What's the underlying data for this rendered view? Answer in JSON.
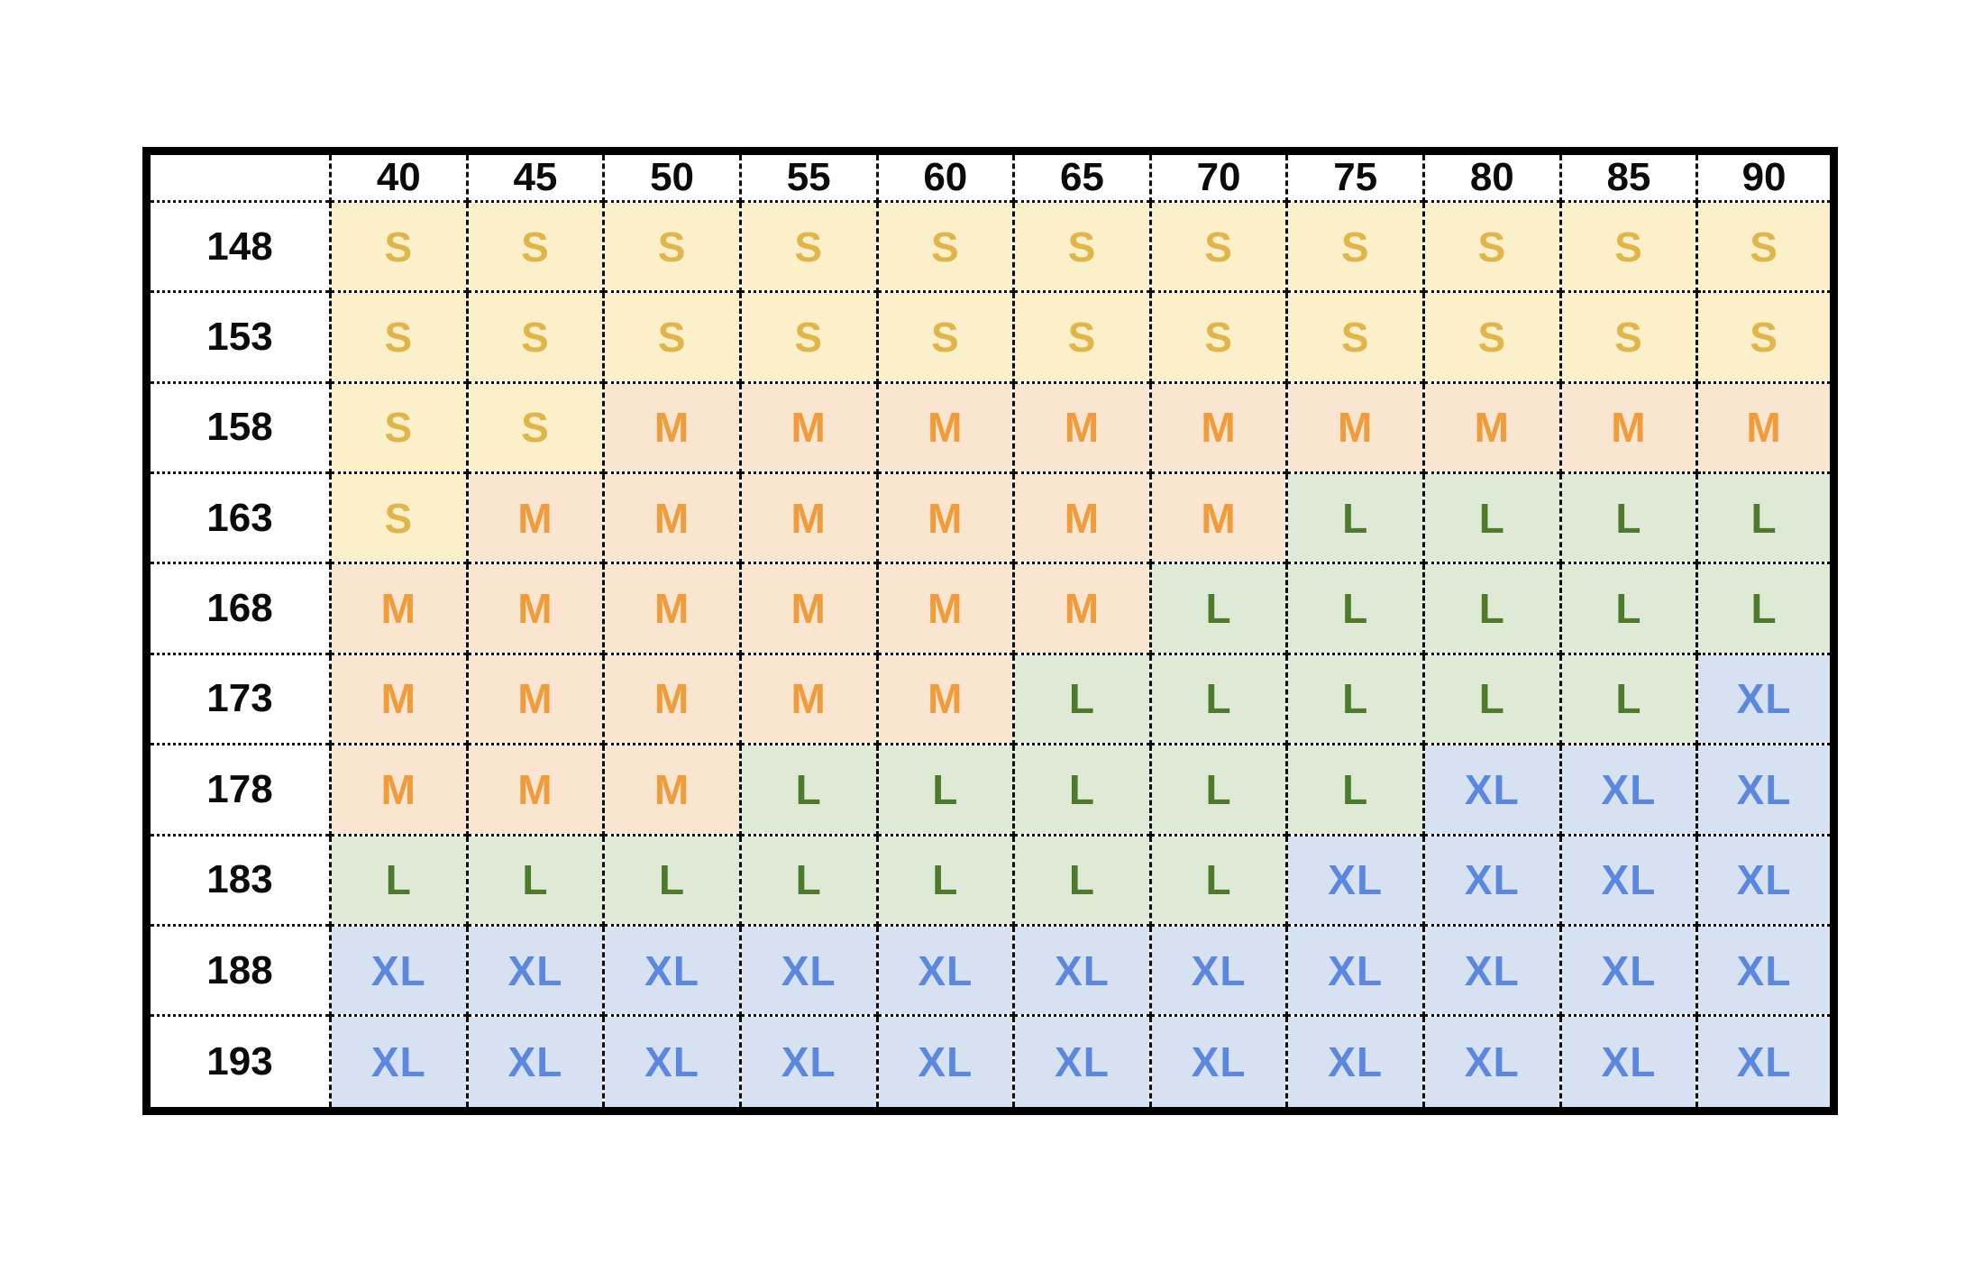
{
  "chart_data": {
    "type": "table",
    "title": "",
    "corner_label": "",
    "columns": [
      "40",
      "45",
      "50",
      "55",
      "60",
      "65",
      "70",
      "75",
      "80",
      "85",
      "90"
    ],
    "rows": [
      "148",
      "153",
      "158",
      "163",
      "168",
      "173",
      "178",
      "183",
      "188",
      "193"
    ],
    "cells": [
      [
        "S",
        "S",
        "S",
        "S",
        "S",
        "S",
        "S",
        "S",
        "S",
        "S",
        "S"
      ],
      [
        "S",
        "S",
        "S",
        "S",
        "S",
        "S",
        "S",
        "S",
        "S",
        "S",
        "S"
      ],
      [
        "S",
        "S",
        "M",
        "M",
        "M",
        "M",
        "M",
        "M",
        "M",
        "M",
        "M"
      ],
      [
        "S",
        "M",
        "M",
        "M",
        "M",
        "M",
        "M",
        "L",
        "L",
        "L",
        "L"
      ],
      [
        "M",
        "M",
        "M",
        "M",
        "M",
        "M",
        "L",
        "L",
        "L",
        "L",
        "L"
      ],
      [
        "M",
        "M",
        "M",
        "M",
        "M",
        "L",
        "L",
        "L",
        "L",
        "L",
        "XL"
      ],
      [
        "M",
        "M",
        "M",
        "L",
        "L",
        "L",
        "L",
        "L",
        "XL",
        "XL",
        "XL"
      ],
      [
        "L",
        "L",
        "L",
        "L",
        "L",
        "L",
        "L",
        "XL",
        "XL",
        "XL",
        "XL"
      ],
      [
        "XL",
        "XL",
        "XL",
        "XL",
        "XL",
        "XL",
        "XL",
        "XL",
        "XL",
        "XL",
        "XL"
      ],
      [
        "XL",
        "XL",
        "XL",
        "XL",
        "XL",
        "XL",
        "XL",
        "XL",
        "XL",
        "XL",
        "XL"
      ]
    ],
    "size_colors": {
      "S": {
        "bg": "#FBF0C9",
        "fg": "#E0B54A"
      },
      "M": {
        "bg": "#FAE5D1",
        "fg": "#F19C3B"
      },
      "L": {
        "bg": "#DEE9D6",
        "fg": "#4D7A2B"
      },
      "XL": {
        "bg": "#D6E1F2",
        "fg": "#5B87DF"
      }
    },
    "grid": {
      "outer_border_color": "#000000",
      "inner_vertical_style": "dashed",
      "inner_horizontal_style": "dotted",
      "header_background": "#FFFFFF",
      "label_text_color": "#0B0B0B"
    },
    "legend_position": "none",
    "axes": {
      "x_header": "",
      "y_header": ""
    }
  }
}
